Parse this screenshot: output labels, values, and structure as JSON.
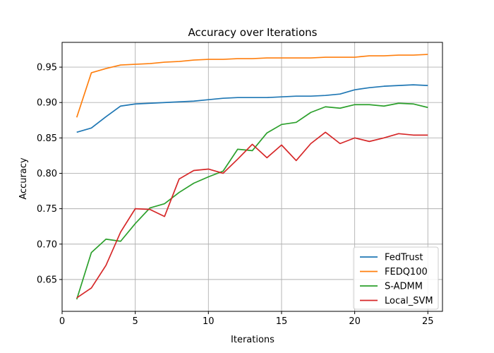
{
  "chart_data": {
    "type": "line",
    "title": "Accuracy over Iterations",
    "xlabel": "Iterations",
    "ylabel": "Accuracy",
    "xlim": [
      0,
      26
    ],
    "ylim": [
      0.605,
      0.985
    ],
    "x_ticks": [
      0,
      5,
      10,
      15,
      20,
      25
    ],
    "y_ticks": [
      0.65,
      0.7,
      0.75,
      0.8,
      0.85,
      0.9,
      0.95
    ],
    "grid": true,
    "legend_position": "bottom-right",
    "x": [
      1,
      2,
      3,
      4,
      5,
      6,
      7,
      8,
      9,
      10,
      11,
      12,
      13,
      14,
      15,
      16,
      17,
      18,
      19,
      20,
      21,
      22,
      23,
      24,
      25
    ],
    "series": [
      {
        "name": "FedTrust",
        "color": "#1f77b4",
        "values": [
          0.858,
          0.864,
          0.88,
          0.895,
          0.898,
          0.899,
          0.9,
          0.901,
          0.902,
          0.904,
          0.906,
          0.907,
          0.907,
          0.907,
          0.908,
          0.909,
          0.909,
          0.91,
          0.912,
          0.918,
          0.921,
          0.923,
          0.924,
          0.925,
          0.924
        ]
      },
      {
        "name": "FEDQ100",
        "color": "#ff7f0e",
        "values": [
          0.879,
          0.942,
          0.948,
          0.953,
          0.954,
          0.955,
          0.957,
          0.958,
          0.96,
          0.961,
          0.961,
          0.962,
          0.962,
          0.963,
          0.963,
          0.963,
          0.963,
          0.964,
          0.964,
          0.964,
          0.966,
          0.966,
          0.967,
          0.967,
          0.968
        ]
      },
      {
        "name": "S-ADMM",
        "color": "#2ca02c",
        "values": [
          0.622,
          0.688,
          0.707,
          0.704,
          0.729,
          0.751,
          0.757,
          0.773,
          0.786,
          0.795,
          0.803,
          0.834,
          0.832,
          0.857,
          0.869,
          0.872,
          0.886,
          0.894,
          0.892,
          0.897,
          0.897,
          0.895,
          0.899,
          0.898,
          0.893
        ]
      },
      {
        "name": "Local_SVM",
        "color": "#d62728",
        "values": [
          0.624,
          0.638,
          0.67,
          0.717,
          0.75,
          0.749,
          0.739,
          0.792,
          0.804,
          0.806,
          0.8,
          0.82,
          0.841,
          0.822,
          0.84,
          0.818,
          0.842,
          0.858,
          0.842,
          0.85,
          0.845,
          0.85,
          0.856,
          0.854,
          0.854
        ]
      }
    ]
  }
}
